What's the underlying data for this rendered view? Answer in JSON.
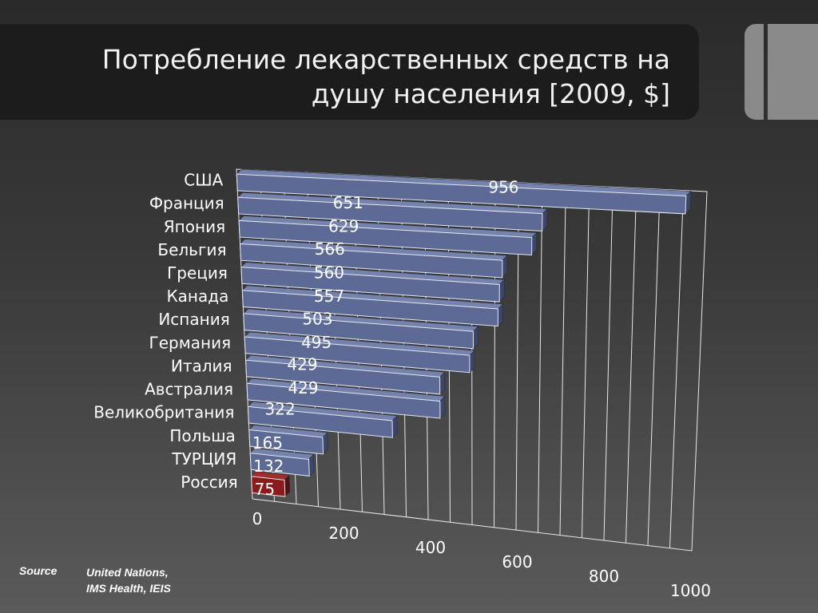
{
  "title": {
    "line1": "Потребление лекарственных средств на",
    "line2": "душу населения [2009, $]"
  },
  "source": {
    "label": "Source",
    "line1": "United Nations,",
    "line2": "IMS Health, IEIS"
  },
  "colors": {
    "bar": "#5c6a95",
    "highlight": "#8b1a1a"
  },
  "chart_data": {
    "type": "bar",
    "orientation": "horizontal",
    "title": "Потребление лекарственных средств на душу населения [2009, $]",
    "categories": [
      "США",
      "Франция",
      "Япония",
      "Бельгия",
      "Греция",
      "Канада",
      "Испания",
      "Германия",
      "Италия",
      "Австралия",
      "Великобритания",
      "Польша",
      "ТУРЦИЯ",
      "Россия"
    ],
    "values": [
      956,
      651,
      629,
      566,
      560,
      557,
      503,
      495,
      429,
      429,
      322,
      165,
      132,
      75
    ],
    "highlight_index": 13,
    "xlim": [
      0,
      1000
    ],
    "xticks": [
      "0",
      "200",
      "400",
      "600",
      "800",
      "1000"
    ],
    "grid": true,
    "perspective": "3d"
  }
}
